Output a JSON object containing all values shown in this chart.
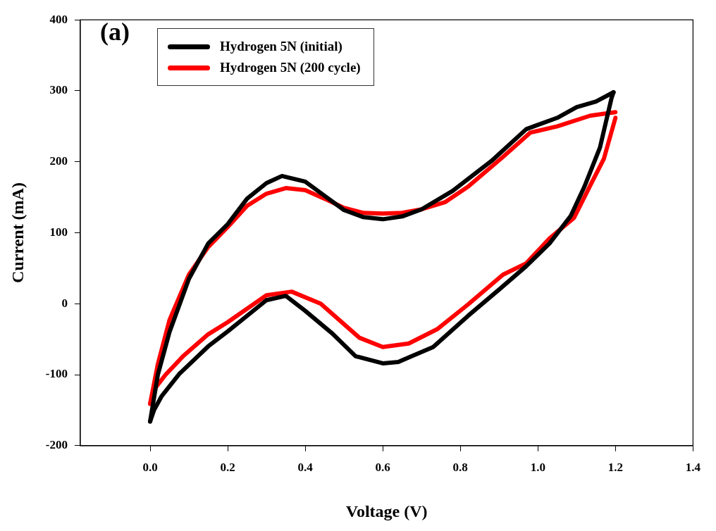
{
  "chart_data": {
    "type": "line",
    "xlabel": "Voltage (V)",
    "ylabel": "Current (mA)",
    "annotations": [
      "(a)"
    ],
    "xlim": [
      -0.18,
      1.4
    ],
    "xticks": [
      {
        "value": 0,
        "label": "0.0"
      },
      0.2,
      0.4,
      0.6,
      0.8,
      {
        "value": 1,
        "label": "1.0"
      },
      1.2,
      1.4
    ],
    "ylim": [
      -200,
      400
    ],
    "yticks": [
      -200,
      -100,
      0,
      100,
      200,
      300,
      400
    ],
    "grid": false,
    "legend": "top left",
    "series": [
      {
        "name": "Hydrogen 5N (initial)",
        "color": "#000000",
        "x": [
          0,
          0.02,
          0.05,
          0.1,
          0.15,
          0.2,
          0.25,
          0.3,
          0.34,
          0.4,
          0.45,
          0.5,
          0.55,
          0.6,
          0.65,
          0.7,
          0.78,
          0.88,
          0.97,
          1.05,
          1.1,
          1.15,
          1.195
        ],
        "values": [
          -166,
          -100,
          -40,
          35,
          85,
          112,
          148,
          170,
          180,
          172,
          152,
          132,
          122,
          119,
          123,
          133,
          159,
          201,
          246,
          262,
          277,
          285,
          298
        ]
      },
      {
        "color": "#000000",
        "x": [
          0,
          0.01,
          0.03,
          0.075,
          0.15,
          0.2,
          0.3,
          0.35,
          0.4,
          0.47,
          0.53,
          0.6,
          0.64,
          0.73,
          0.82,
          0.9,
          0.97,
          1.03,
          1.085,
          1.12,
          1.16,
          1.19,
          1.195
        ],
        "values": [
          -166,
          -150,
          -130,
          -99,
          -60,
          -39,
          5,
          11,
          -10,
          -42,
          -74,
          -84,
          -82,
          -61,
          -17,
          20,
          53,
          85,
          124,
          165,
          220,
          290,
          298
        ]
      },
      {
        "name": "Hydrogen 5N (200 cycle)",
        "color": "#ff0000",
        "x": [
          0,
          0.02,
          0.05,
          0.1,
          0.15,
          0.2,
          0.25,
          0.3,
          0.35,
          0.4,
          0.45,
          0.5,
          0.55,
          0.6,
          0.65,
          0.7,
          0.76,
          0.82,
          0.91,
          0.98,
          1.05,
          1.135,
          1.2
        ],
        "values": [
          -141,
          -85,
          -23,
          41,
          80,
          108,
          138,
          155,
          163,
          160,
          148,
          135,
          128,
          127,
          128,
          133,
          143,
          165,
          207,
          241,
          250,
          265,
          270
        ]
      },
      {
        "color": "#ff0000",
        "x": [
          0,
          0.013,
          0.04,
          0.085,
          0.15,
          0.2,
          0.3,
          0.365,
          0.44,
          0.54,
          0.6,
          0.667,
          0.74,
          0.82,
          0.91,
          0.97,
          1.03,
          1.093,
          1.14,
          1.17,
          1.2
        ],
        "values": [
          -141,
          -119,
          -100,
          -74,
          -43,
          -26,
          12,
          17,
          0,
          -48,
          -61,
          -56,
          -36,
          -1,
          41,
          57,
          92,
          121,
          172,
          204,
          262
        ]
      }
    ]
  }
}
